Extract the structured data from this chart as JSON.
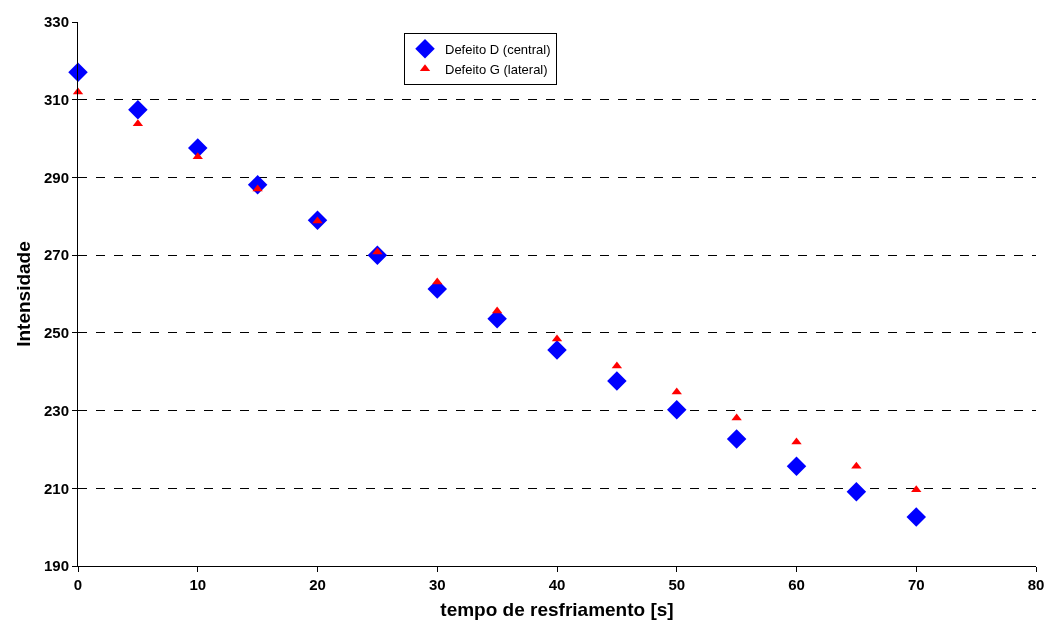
{
  "chart_data": {
    "type": "scatter",
    "xlabel": "tempo de resfriamento [s]",
    "ylabel": "Intensidade",
    "x": [
      0,
      5,
      10,
      15,
      20,
      25,
      30,
      35,
      40,
      45,
      50,
      55,
      60,
      65,
      70
    ],
    "series": [
      {
        "name": "Defeito D (central)",
        "color": "#0000ff",
        "marker": "diamond",
        "values": [
          317.1,
          307.4,
          297.6,
          288.1,
          279.0,
          270.0,
          261.3,
          253.6,
          245.6,
          237.6,
          230.2,
          222.7,
          215.7,
          209.1,
          202.6
        ]
      },
      {
        "name": "Defeito G (lateral)",
        "color": "#ff0000",
        "marker": "triangle",
        "values": [
          312.0,
          303.8,
          295.3,
          287.0,
          278.8,
          270.8,
          263.1,
          255.6,
          248.4,
          241.5,
          234.8,
          228.1,
          221.9,
          215.7,
          209.6
        ]
      }
    ],
    "xlim": [
      0,
      80
    ],
    "xticks": [
      0,
      10,
      20,
      30,
      40,
      50,
      60,
      70,
      80
    ],
    "ylim": [
      190,
      330
    ],
    "yticks": [
      190,
      210,
      230,
      250,
      270,
      290,
      310,
      330
    ],
    "grid": "y",
    "legend": "top"
  }
}
